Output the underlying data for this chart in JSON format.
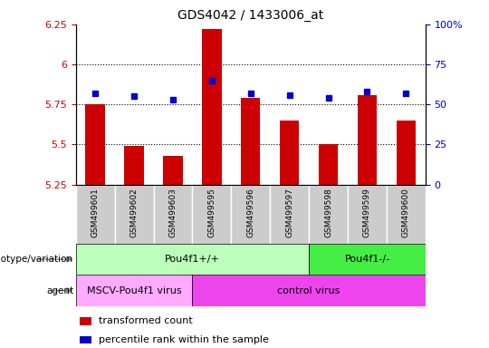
{
  "title": "GDS4042 / 1433006_at",
  "samples": [
    "GSM499601",
    "GSM499602",
    "GSM499603",
    "GSM499595",
    "GSM499596",
    "GSM499597",
    "GSM499598",
    "GSM499599",
    "GSM499600"
  ],
  "transformed_count": [
    5.75,
    5.49,
    5.43,
    6.22,
    5.79,
    5.65,
    5.5,
    5.81,
    5.65
  ],
  "percentile_rank": [
    57,
    55,
    53,
    65,
    57,
    56,
    54,
    58,
    57
  ],
  "ylim_left": [
    5.25,
    6.25
  ],
  "ylim_right": [
    0,
    100
  ],
  "yticks_left": [
    5.25,
    5.5,
    5.75,
    6.0,
    6.25
  ],
  "yticks_right": [
    0,
    25,
    50,
    75,
    100
  ],
  "ytick_labels_left": [
    "5.25",
    "5.5",
    "5.75",
    "6",
    "6.25"
  ],
  "ytick_labels_right": [
    "0",
    "25",
    "50",
    "75",
    "100%"
  ],
  "bar_color": "#cc0000",
  "dot_color": "#0000cc",
  "bar_bottom": 5.25,
  "genotype_groups": [
    {
      "label": "Pou4f1+/+",
      "start": 0,
      "end": 6,
      "color": "#bbffbb"
    },
    {
      "label": "Pou4f1-/-",
      "start": 6,
      "end": 9,
      "color": "#44ee44"
    }
  ],
  "agent_groups": [
    {
      "label": "MSCV-Pou4f1 virus",
      "start": 0,
      "end": 3,
      "color": "#ffaaff"
    },
    {
      "label": "control virus",
      "start": 3,
      "end": 9,
      "color": "#ee44ee"
    }
  ],
  "legend_items": [
    {
      "label": "transformed count",
      "color": "#cc0000"
    },
    {
      "label": "percentile rank within the sample",
      "color": "#0000cc"
    }
  ],
  "grid_color": "black",
  "tick_label_color_left": "#cc0000",
  "tick_label_color_right": "#0000cc",
  "xticklabel_bg": "#cccccc",
  "fig_bg": "#ffffff"
}
